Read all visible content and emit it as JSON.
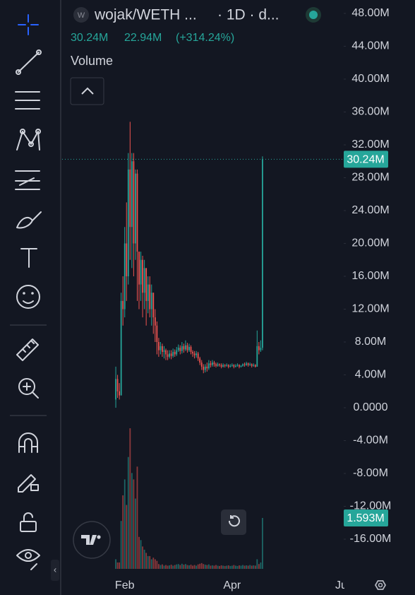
{
  "header": {
    "icon_letter": "W",
    "symbol": "wojak/WETH ...",
    "interval": "· 1D · d...",
    "volume_title": "Volume"
  },
  "chart_data": {
    "type": "candlestick",
    "last_label": "30.24M",
    "change": "22.94M",
    "change_percent": "(+314.24%)",
    "volume_label": "1.593M",
    "up_color": "#26a69a",
    "down_color": "#ef5350",
    "grid": false,
    "categories": [
      null,
      null,
      null,
      null,
      null,
      null,
      null,
      null,
      null,
      null,
      null,
      null,
      null,
      null,
      null,
      null,
      null,
      null,
      null,
      null,
      null,
      null,
      null,
      null,
      null,
      null,
      null,
      null,
      null,
      null,
      null,
      null,
      null,
      null,
      null,
      null,
      null,
      null,
      null,
      null,
      null,
      null,
      null,
      null,
      null,
      null,
      null,
      null,
      null,
      null,
      null,
      null,
      null,
      null,
      null,
      null,
      null,
      null,
      null,
      null,
      null,
      null,
      null,
      null,
      null,
      null,
      null,
      null,
      null,
      null,
      null,
      null,
      null,
      null,
      null,
      null,
      null,
      null,
      null,
      null,
      null,
      null,
      null
    ],
    "open": [
      1000000.0,
      3500000.0,
      2000000.0,
      1500000.0,
      13000000.0,
      12000000.0,
      20000000.0,
      16000000.0,
      29000000.0,
      22000000.0,
      30000000.0,
      20000000.0,
      28500000.0,
      19000000.0,
      15000000.0,
      18000000.0,
      14000000.0,
      17000000.0,
      13000000.0,
      15000000.0,
      12000000.0,
      14000000.0,
      11000000.0,
      10000000.0,
      8000000.0,
      7000000.0,
      7500000.0,
      6800000.0,
      7000000.0,
      6500000.0,
      6200000.0,
      6600000.0,
      6300000.0,
      6800000.0,
      6500000.0,
      7000000.0,
      7300000.0,
      6900000.0,
      7500000.0,
      7100000.0,
      7600000.0,
      7000000.0,
      7400000.0,
      6800000.0,
      6600000.0,
      6400000.0,
      6600000.0,
      6000000.0,
      5500000.0,
      5000000.0,
      4600000.0,
      5000000.0,
      4800000.0,
      5400000.0,
      5200000.0,
      5500000.0,
      5300000.0,
      5100000.0,
      5300000.0,
      5200000.0,
      5000000.0,
      5200000.0,
      5100000.0,
      5200000.0,
      5000000.0,
      5100000.0,
      5200000.0,
      5000000.0,
      5100000.0,
      5200000.0,
      5000000.0,
      5100000.0,
      5300000.0,
      5200000.0,
      5400000.0,
      5200000.0,
      5300000.0,
      5100000.0,
      5200000.0,
      5000000.0,
      7500000.0,
      7000000.0,
      7300000.0
    ],
    "high": [
      5000000.0,
      4000000.0,
      3000000.0,
      14000000.0,
      16000000.0,
      22000000.0,
      25000000.0,
      31000000.0,
      34800000.0,
      31000000.0,
      31000000.0,
      29000000.0,
      29000000.0,
      19000000.0,
      19000000.0,
      18500000.0,
      18000000.0,
      17000000.0,
      16000000.0,
      16000000.0,
      15000000.0,
      14000000.0,
      12000000.0,
      10500000.0,
      8500000.0,
      8000000.0,
      7800000.0,
      7500000.0,
      7200000.0,
      7000000.0,
      7000000.0,
      7000000.0,
      7200000.0,
      7100000.0,
      7400000.0,
      7700000.0,
      7600000.0,
      8000000.0,
      7800000.0,
      8200000.0,
      7900000.0,
      7800000.0,
      7600000.0,
      7000000.0,
      6900000.0,
      6900000.0,
      6800000.0,
      6200000.0,
      5800000.0,
      5300000.0,
      5300000.0,
      5500000.0,
      5800000.0,
      5700000.0,
      5800000.0,
      5700000.0,
      5500000.0,
      5500000.0,
      5400000.0,
      5400000.0,
      5400000.0,
      5300000.0,
      5400000.0,
      5300000.0,
      5300000.0,
      5400000.0,
      5300000.0,
      5300000.0,
      5400000.0,
      5300000.0,
      5200000.0,
      5400000.0,
      5500000.0,
      5600000.0,
      5500000.0,
      5500000.0,
      5400000.0,
      5400000.0,
      5300000.0,
      9400000.0,
      8000000.0,
      8200000.0,
      30600000.0
    ],
    "low": [
      0,
      1200000.0,
      1000000.0,
      1500000.0,
      10000000.0,
      11000000.0,
      13000000.0,
      15000000.0,
      18000000.0,
      17000000.0,
      16000000.0,
      18000000.0,
      13000000.0,
      12000000.0,
      13000000.0,
      11000000.0,
      12000000.0,
      10000000.0,
      11500000.0,
      11000000.0,
      10000000.0,
      9000000.0,
      8000000.0,
      6500000.0,
      6200000.0,
      6500000.0,
      6200000.0,
      6000000.0,
      5800000.0,
      5800000.0,
      6000000.0,
      5900000.0,
      6100000.0,
      6200000.0,
      6300000.0,
      6800000.0,
      6500000.0,
      6600000.0,
      6700000.0,
      6900000.0,
      6700000.0,
      6800000.0,
      6500000.0,
      6200000.0,
      6000000.0,
      6100000.0,
      5700000.0,
      5200000.0,
      4600000.0,
      4200000.0,
      4300000.0,
      4400000.0,
      4600000.0,
      4900000.0,
      5000000.0,
      5000000.0,
      4900000.0,
      5000000.0,
      5000000.0,
      4800000.0,
      4900000.0,
      4900000.0,
      5000000.0,
      4800000.0,
      4900000.0,
      5000000.0,
      4800000.0,
      4900000.0,
      5000000.0,
      4800000.0,
      4900000.0,
      5000000.0,
      5000000.0,
      5100000.0,
      5000000.0,
      5100000.0,
      4900000.0,
      5000000.0,
      4900000.0,
      5000000.0,
      6500000.0,
      6800000.0,
      7000000.0
    ],
    "close": [
      3500000.0,
      2000000.0,
      1500000.0,
      13000000.0,
      12000000.0,
      20000000.0,
      16000000.0,
      29000000.0,
      22000000.0,
      30000000.0,
      20000000.0,
      28500000.0,
      19000000.0,
      15000000.0,
      18000000.0,
      14000000.0,
      17000000.0,
      13000000.0,
      15000000.0,
      12000000.0,
      14000000.0,
      11000000.0,
      10000000.0,
      8000000.0,
      7000000.0,
      7500000.0,
      6800000.0,
      7000000.0,
      6500000.0,
      6200000.0,
      6600000.0,
      6300000.0,
      6800000.0,
      6500000.0,
      7000000.0,
      7300000.0,
      6900000.0,
      7500000.0,
      7100000.0,
      7600000.0,
      7000000.0,
      7400000.0,
      6800000.0,
      6600000.0,
      6400000.0,
      6600000.0,
      6000000.0,
      5500000.0,
      5000000.0,
      4600000.0,
      5000000.0,
      4800000.0,
      5400000.0,
      5200000.0,
      5500000.0,
      5300000.0,
      5100000.0,
      5300000.0,
      5200000.0,
      5000000.0,
      5200000.0,
      5100000.0,
      5200000.0,
      5000000.0,
      5100000.0,
      5200000.0,
      5000000.0,
      5100000.0,
      5200000.0,
      5000000.0,
      5100000.0,
      5300000.0,
      5200000.0,
      5400000.0,
      5200000.0,
      5300000.0,
      5100000.0,
      5200000.0,
      5000000.0,
      7500000.0,
      7000000.0,
      7300000.0,
      30240000.0
    ],
    "volume": [
      300000.0,
      200000.0,
      200000.0,
      1500000.0,
      2300000.0,
      2800000.0,
      2000000.0,
      3500000.0,
      4400000.0,
      3000000.0,
      2800000.0,
      2200000.0,
      3200000.0,
      1000000.0,
      900000.0,
      700000.0,
      600000.0,
      500000.0,
      400000.0,
      400000.0,
      300000.0,
      350000.0,
      300000.0,
      250000.0,
      150000.0,
      120000.0,
      140000.0,
      100000.0,
      120000.0,
      100000.0,
      110000.0,
      130000.0,
      100000.0,
      120000.0,
      140000.0,
      150000.0,
      120000.0,
      160000.0,
      130000.0,
      150000.0,
      120000.0,
      110000.0,
      130000.0,
      100000.0,
      120000.0,
      100000.0,
      140000.0,
      160000.0,
      180000.0,
      150000.0,
      130000.0,
      120000.0,
      140000.0,
      100000.0,
      110000.0,
      100000.0,
      120000.0,
      100000.0,
      90000.0,
      110000.0,
      100000.0,
      90000.0,
      100000.0,
      110000.0,
      90000.0,
      100000.0,
      120000.0,
      100000.0,
      90000.0,
      110000.0,
      100000.0,
      120000.0,
      100000.0,
      110000.0,
      100000.0,
      120000.0,
      100000.0,
      110000.0,
      100000.0,
      300000.0,
      150000.0,
      200000.0,
      1593000.0
    ],
    "xlim": [
      -30,
      127.4
    ],
    "xticks": [
      {
        "value": 5,
        "label": "Feb"
      },
      {
        "value": 65,
        "label": "Apr"
      },
      {
        "value": 126,
        "label": "Ju"
      }
    ],
    "ylim": [
      -19610000.0,
      49630000.0
    ],
    "yticks": [
      {
        "value": 48000000.0,
        "label": "48.00M"
      },
      {
        "value": 44000000.0,
        "label": "44.00M"
      },
      {
        "value": 40000000.0,
        "label": "40.00M"
      },
      {
        "value": 36000000.0,
        "label": "36.00M"
      },
      {
        "value": 32000000.0,
        "label": "32.00M"
      },
      {
        "value": 28000000.0,
        "label": "28.00M"
      },
      {
        "value": 24000000.0,
        "label": "24.00M"
      },
      {
        "value": 20000000.0,
        "label": "20.00M"
      },
      {
        "value": 16000000.0,
        "label": "16.00M"
      },
      {
        "value": 12000000.0,
        "label": "12.00M"
      },
      {
        "value": 8000000.0,
        "label": "8.00M"
      },
      {
        "value": 4000000.0,
        "label": "4.00M"
      },
      {
        "value": 0,
        "label": "0.0000"
      },
      {
        "value": -4000000.0,
        "label": "-4.00M"
      },
      {
        "value": -8000000.0,
        "label": "-8.00M"
      },
      {
        "value": -12000000.0,
        "label": "-12.00M"
      },
      {
        "value": -16000000.0,
        "label": "-16.00M"
      }
    ],
    "volume_ylim": [
      0,
      4600000.0
    ]
  }
}
